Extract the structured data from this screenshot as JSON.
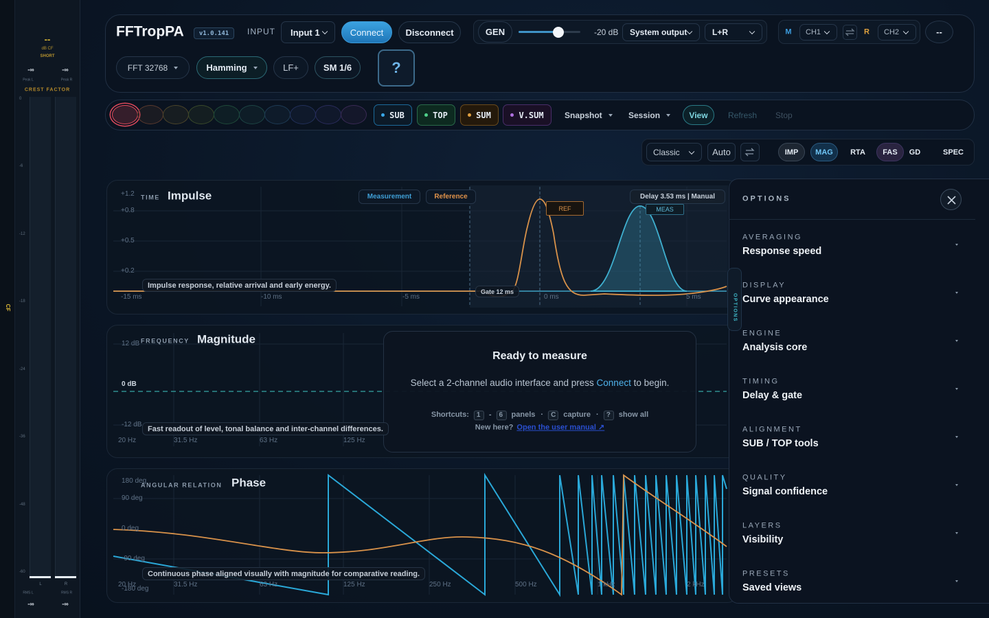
{
  "meter": {
    "peak_readout": "--",
    "readout_unit": "dB CF",
    "readout_mode": "SHORT",
    "peak_l": "-∞",
    "peak_r": "-∞",
    "peak_l_label": "Peak L",
    "peak_r_label": "Peak R",
    "crest_label": "CREST FACTOR",
    "scale": [
      "0",
      "-6",
      "-12",
      "-18",
      "-24",
      "-36",
      "-48",
      "-60"
    ],
    "channel_l": "L",
    "channel_r": "R",
    "rms_l_label": "RMS L",
    "rms_r_label": "RMS R",
    "rms_l": "-∞",
    "rms_r": "-∞",
    "side_tab": "CF"
  },
  "header": {
    "app_name": "FFTropPA",
    "version": "v1.0.141",
    "input_label": "INPUT",
    "input": "Input 1",
    "connect": "Connect",
    "disconnect": "Disconnect",
    "gen": "GEN",
    "level": "-20 dB",
    "output": "System output",
    "channels": "L+R",
    "m": "M",
    "ch1": "CH1",
    "r": "R",
    "ch2": "CH2",
    "more": "--",
    "fft": "FFT 32768",
    "window": "Hamming",
    "lf": "LF+",
    "smoothing": "SM 1/6",
    "help": "?"
  },
  "toolbar": {
    "chips": [
      "SUB",
      "TOP",
      "SUM",
      "V.SUM"
    ],
    "snapshot": "Snapshot",
    "session": "Session",
    "view": "View",
    "refresh": "Refresh",
    "stop": "Stop"
  },
  "view_bar": {
    "mode": "Classic",
    "auto": "Auto",
    "tabs": [
      "IMP",
      "MAG",
      "RTA",
      "FAS",
      "GD",
      "SPEC"
    ]
  },
  "impulse": {
    "kicker": "TIME",
    "title": "Impulse",
    "y_labels": [
      "+1.2",
      "+0.8",
      "+0.5",
      "+0.2"
    ],
    "x_labels": [
      "-15 ms",
      "-10 ms",
      "-5 ms",
      "0 ms",
      "5 ms"
    ],
    "tag_measurement": "Measurement",
    "tag_reference": "Reference",
    "delay": "Delay 3.53 ms | Manual",
    "ref_marker": "REF",
    "meas_marker": "MEAS",
    "gate": "Gate 12 ms",
    "caption": "Impulse response, relative arrival and early energy."
  },
  "magnitude": {
    "kicker": "FREQUENCY",
    "title": "Magnitude",
    "y_labels": [
      "12 dB",
      "0 dB",
      "-12 dB"
    ],
    "x_labels": [
      "20 Hz",
      "31.5 Hz",
      "63 Hz",
      "125 Hz"
    ],
    "caption": "Fast readout of level, tonal balance and inter-channel differences."
  },
  "overlay": {
    "title": "Ready to measure",
    "text_before": "Select a 2-channel audio interface and press",
    "link": "Connect",
    "text_after": "to begin.",
    "shortcuts_label": "Shortcuts:",
    "key_first": "1",
    "key_sep": "-",
    "key_last": "6",
    "panels": "panels",
    "dot": "·",
    "key_capture": "C",
    "capture": "capture",
    "key_help": "?",
    "show_all": "show all",
    "new_here": "New here?",
    "manual": "Open the user manual ↗"
  },
  "phase": {
    "kicker": "ANGULAR RELATION",
    "title": "Phase",
    "y_labels": [
      "180 deg",
      "90 deg",
      "0 deg",
      "-90 deg",
      "-180 deg"
    ],
    "x_labels": [
      "20 Hz",
      "31.5 Hz",
      "63 Hz",
      "125 Hz",
      "250 Hz",
      "500 Hz",
      "1 kHz",
      "2 kHz"
    ],
    "caption": "Continuous phase aligned visually with magnitude for comparative reading."
  },
  "options": {
    "title": "OPTIONS",
    "side_tab": "OPTIONS",
    "sections": [
      {
        "kicker": "AVERAGING",
        "title": "Response speed"
      },
      {
        "kicker": "DISPLAY",
        "title": "Curve appearance"
      },
      {
        "kicker": "ENGINE",
        "title": "Analysis core"
      },
      {
        "kicker": "TIMING",
        "title": "Delay & gate"
      },
      {
        "kicker": "ALIGNMENT",
        "title": "SUB / TOP tools"
      },
      {
        "kicker": "QUALITY",
        "title": "Signal confidence"
      },
      {
        "kicker": "LAYERS",
        "title": "Visibility"
      },
      {
        "kicker": "PRESETS",
        "title": "Saved views"
      }
    ]
  }
}
